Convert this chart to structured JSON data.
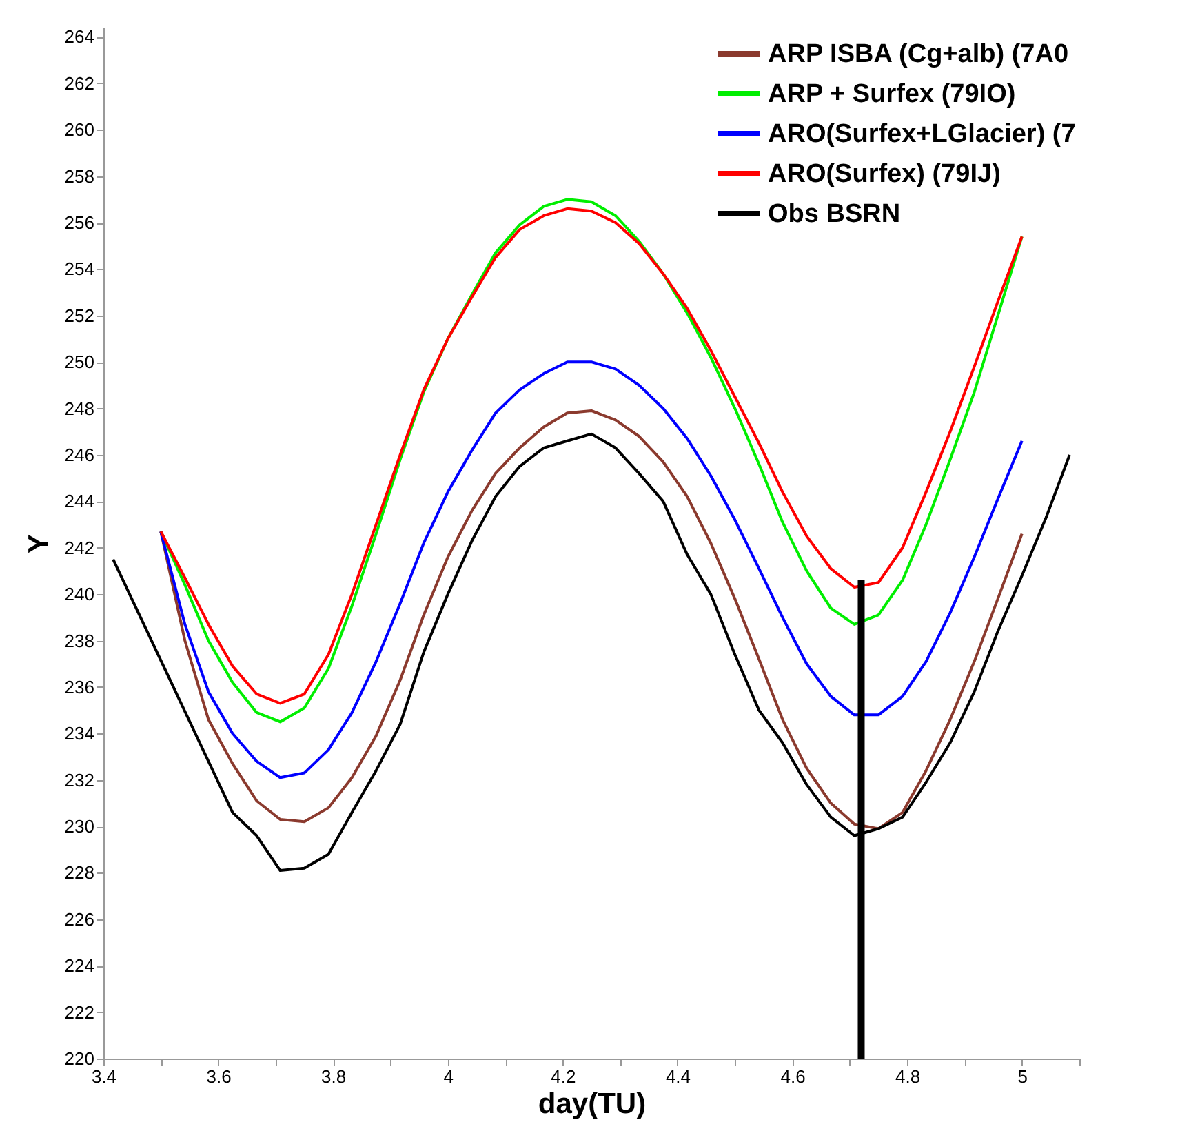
{
  "chart_data": {
    "type": "line",
    "xlabel": "day(TU)",
    "ylabel": "Y",
    "x": [
      3.5,
      3.542,
      3.583,
      3.625,
      3.667,
      3.708,
      3.75,
      3.792,
      3.833,
      3.875,
      3.917,
      3.958,
      4.0,
      4.042,
      4.083,
      4.125,
      4.167,
      4.208,
      4.25,
      4.292,
      4.333,
      4.375,
      4.417,
      4.458,
      4.5,
      4.542,
      4.583,
      4.625,
      4.667,
      4.708,
      4.75,
      4.792,
      4.833,
      4.875,
      4.917,
      4.958,
      5.0
    ],
    "series": [
      {
        "name": "ARP ISBA (Cg+alb) (7A0",
        "color": "#8b3a2e",
        "values": [
          242.7,
          238.0,
          234.6,
          232.7,
          231.1,
          230.3,
          230.2,
          230.8,
          232.1,
          233.9,
          236.3,
          239.1,
          241.6,
          243.6,
          245.2,
          246.3,
          247.2,
          247.8,
          247.9,
          247.5,
          246.8,
          245.7,
          244.2,
          242.2,
          239.8,
          237.2,
          234.6,
          232.5,
          231.0,
          230.1,
          229.9,
          230.6,
          232.4,
          234.6,
          237.1,
          239.8,
          242.6
        ]
      },
      {
        "name": "ARP + Surfex (79IO)",
        "color": "#00ee00",
        "values": [
          242.7,
          240.4,
          238.0,
          236.2,
          234.9,
          234.5,
          235.1,
          236.8,
          239.5,
          242.6,
          245.8,
          248.7,
          251.0,
          252.9,
          254.7,
          255.9,
          256.7,
          257.0,
          256.9,
          256.3,
          255.2,
          253.8,
          252.1,
          250.2,
          248.0,
          245.6,
          243.1,
          241.0,
          239.4,
          238.7,
          239.1,
          240.6,
          243.0,
          245.8,
          248.7,
          252.0,
          255.4
        ]
      },
      {
        "name": "ARO(Surfex+LGlacier) (7",
        "color": "#0000ff",
        "values": [
          242.7,
          238.7,
          235.8,
          234.0,
          232.8,
          232.1,
          232.3,
          233.3,
          234.9,
          237.1,
          239.6,
          242.2,
          244.4,
          246.2,
          247.8,
          248.8,
          249.5,
          250.0,
          250.0,
          249.7,
          249.0,
          248.0,
          246.7,
          245.1,
          243.2,
          241.1,
          239.0,
          237.0,
          235.6,
          234.8,
          234.8,
          235.6,
          237.1,
          239.2,
          241.6,
          244.1,
          246.6
        ]
      },
      {
        "name": "ARO(Surfex) (79IJ)",
        "color": "#ff0000",
        "values": [
          242.7,
          240.7,
          238.7,
          236.9,
          235.7,
          235.3,
          235.7,
          237.4,
          240.0,
          243.0,
          246.0,
          248.8,
          251.0,
          252.8,
          254.5,
          255.7,
          256.3,
          256.6,
          256.5,
          256.0,
          255.1,
          253.8,
          252.3,
          250.5,
          248.5,
          246.5,
          244.4,
          242.5,
          241.1,
          240.3,
          240.5,
          242.0,
          244.4,
          247.0,
          249.8,
          252.6,
          255.4
        ]
      },
      {
        "name": "Obs BSRN",
        "color": "#000000",
        "x": [
          3.417,
          3.625,
          3.667,
          3.708,
          3.75,
          3.792,
          3.833,
          3.875,
          3.917,
          3.958,
          4.0,
          4.042,
          4.083,
          4.125,
          4.167,
          4.208,
          4.25,
          4.292,
          4.333,
          4.375,
          4.417,
          4.458,
          4.5,
          4.542,
          4.583,
          4.625,
          4.667,
          4.708,
          4.75,
          4.792,
          4.833,
          4.875,
          4.917,
          4.958,
          5.0,
          5.042,
          5.083
        ],
        "values": [
          241.5,
          230.6,
          229.6,
          228.1,
          228.2,
          228.8,
          230.6,
          232.4,
          234.4,
          237.5,
          240.0,
          242.3,
          244.2,
          245.5,
          246.3,
          246.6,
          246.9,
          246.3,
          245.2,
          244.0,
          241.7,
          240.0,
          237.4,
          235.0,
          233.6,
          231.8,
          230.4,
          229.6,
          229.9,
          230.4,
          231.9,
          233.6,
          235.8,
          238.4,
          240.8,
          243.3,
          246.0
        ]
      },
      {
        "color": "#000000",
        "x": [
          4.72,
          4.72
        ],
        "values": [
          220,
          240.6
        ]
      }
    ],
    "xlim": [
      3.4,
      5.1
    ],
    "xticks": [
      3.4,
      {
        "value": 3.5,
        "label": null
      },
      3.6,
      {
        "value": 3.7,
        "label": null
      },
      3.8,
      {
        "value": 3.9,
        "label": null
      },
      4,
      {
        "value": 4.1,
        "label": null
      },
      4.2,
      {
        "value": 4.3,
        "label": null
      },
      4.4,
      {
        "value": 4.5,
        "label": null
      },
      4.6,
      {
        "value": 4.7,
        "label": null
      },
      4.8,
      {
        "value": 4.9,
        "label": null
      },
      5,
      {
        "value": 5.1,
        "label": null
      }
    ],
    "ylim": [
      220,
      264.4
    ],
    "yticks": [
      220,
      222,
      224,
      226,
      228,
      230,
      232,
      234,
      236,
      238,
      240,
      242,
      244,
      246,
      248,
      250,
      252,
      254,
      256,
      258,
      260,
      262,
      264
    ],
    "legend": "top right"
  }
}
